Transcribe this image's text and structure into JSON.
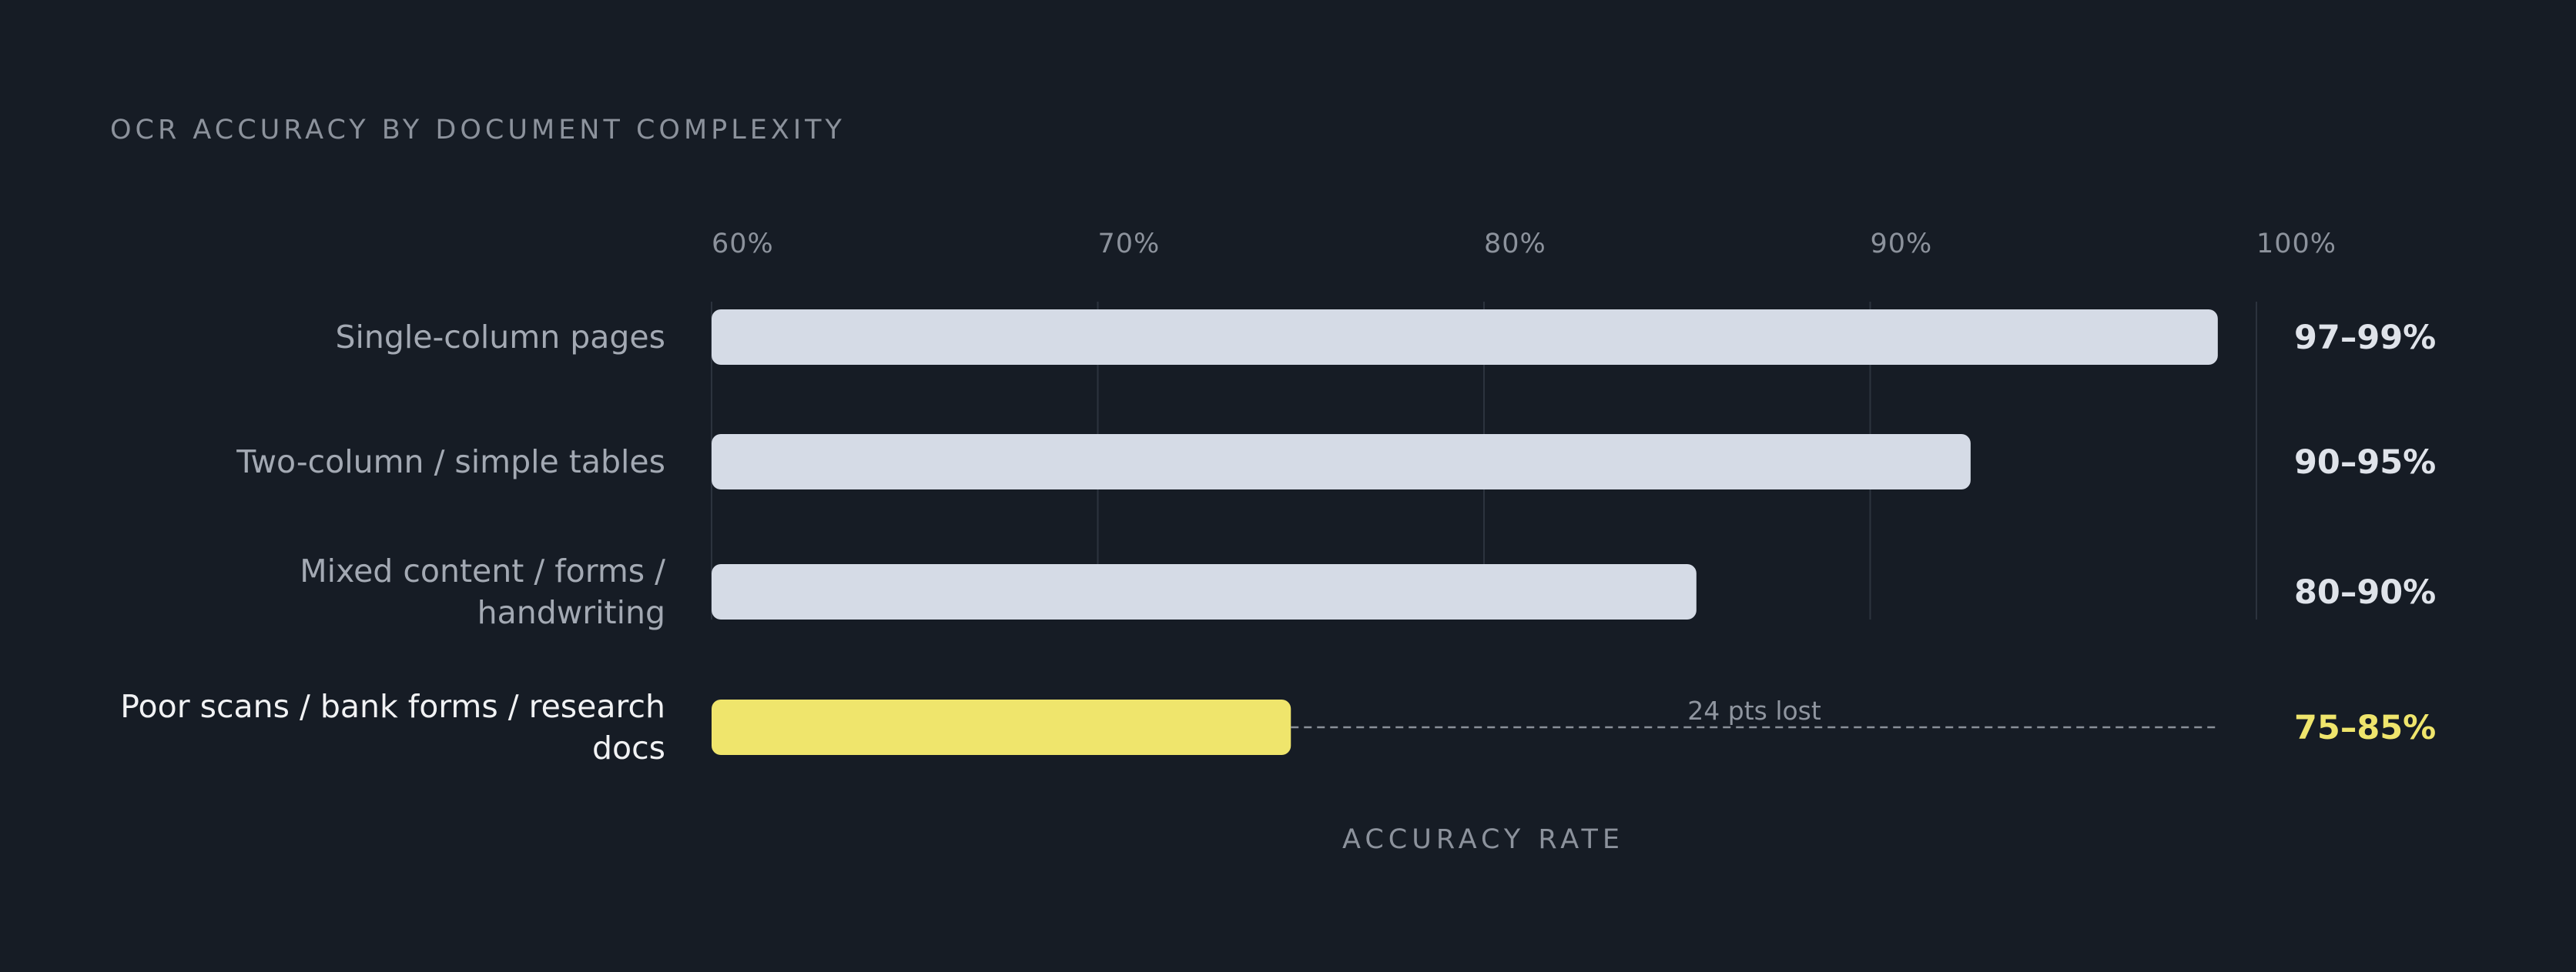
{
  "chart_data": {
    "type": "bar",
    "orientation": "horizontal",
    "title": "OCR ACCURACY BY DOCUMENT COMPLEXITY",
    "xlabel": "ACCURACY RATE",
    "xlim": [
      60,
      100
    ],
    "x_ticks": [
      60,
      70,
      80,
      90,
      100
    ],
    "x_tick_labels": [
      "60%",
      "70%",
      "80%",
      "90%",
      "100%"
    ],
    "grid": true,
    "categories": [
      "Single-column pages",
      "Two-column / simple tables",
      "Mixed content / forms / handwriting",
      "Poor scans / bank forms / research docs"
    ],
    "category_lines": [
      [
        "Single-column pages"
      ],
      [
        "Two-column / simple tables"
      ],
      [
        "Mixed content / forms /",
        "handwriting"
      ],
      [
        "Poor scans / bank forms / research",
        "docs"
      ]
    ],
    "values": [
      99,
      92.6,
      85.5,
      75
    ],
    "value_labels": [
      "97–99%",
      "90–95%",
      "80–90%",
      "75–85%"
    ],
    "highlight_index": 3,
    "annotation": {
      "text": "24 pts lost",
      "category_index": 3,
      "from": 75,
      "to": 99
    },
    "colors": {
      "background": "#161c25",
      "bar": "#d5dbe6",
      "highlight": "#efe56c",
      "grid": "#2c333e",
      "muted_text": "#8c929c",
      "category_text": "#a3a9b3",
      "category_text_highlight": "#f1f2f4",
      "value_text": "#dfe3ea",
      "dashed_line": "#8a9099"
    }
  }
}
